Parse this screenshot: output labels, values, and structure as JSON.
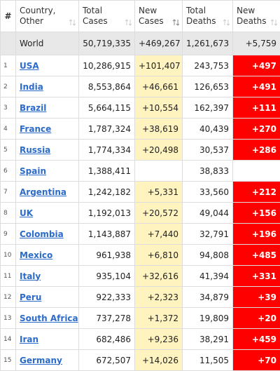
{
  "table": {
    "header": [
      [
        "#"
      ],
      [
        "Country,",
        "Other"
      ],
      [
        "Total",
        "Cases"
      ],
      [
        "New",
        "Cases"
      ],
      [
        "Total",
        "Deaths"
      ],
      [
        "New",
        "Deaths"
      ]
    ],
    "world": [
      "World",
      "50,719,335",
      "+469,267",
      "1,261,673",
      "+5,759"
    ],
    "rows": [
      [
        "1",
        "USA",
        "10,286,915",
        "+101,407",
        "243,753",
        "+497"
      ],
      [
        "2",
        "India",
        "8,553,864",
        "+46,661",
        "126,653",
        "+491"
      ],
      [
        "3",
        "Brazil",
        "5,664,115",
        "+10,554",
        "162,397",
        "+111"
      ],
      [
        "4",
        "France",
        "1,787,324",
        "+38,619",
        "40,439",
        "+270"
      ],
      [
        "5",
        "Russia",
        "1,774,334",
        "+20,498",
        "30,537",
        "+286"
      ],
      [
        "6",
        "Spain",
        "1,388,411",
        null,
        "38,833",
        null
      ],
      [
        "7",
        "Argentina",
        "1,242,182",
        "+5,331",
        "33,560",
        "+212"
      ],
      [
        "8",
        "UK",
        "1,192,013",
        "+20,572",
        "49,044",
        "+156"
      ],
      [
        "9",
        "Colombia",
        "1,143,887",
        "+7,440",
        "32,791",
        "+196"
      ],
      [
        "10",
        "Mexico",
        "961,938",
        "+6,810",
        "94,808",
        "+485"
      ],
      [
        "11",
        "Italy",
        "935,104",
        "+32,616",
        "41,394",
        "+331"
      ],
      [
        "12",
        "Peru",
        "922,333",
        "+2,323",
        "34,879",
        "+39"
      ],
      [
        "13",
        "South Africa",
        "737,278",
        "+1,372",
        "19,809",
        "+20"
      ],
      [
        "14",
        "Iran",
        "682,486",
        "+9,236",
        "38,291",
        "+459"
      ],
      [
        "15",
        "Germany",
        "672,507",
        "+14,026",
        "11,505",
        "+70"
      ]
    ]
  }
}
